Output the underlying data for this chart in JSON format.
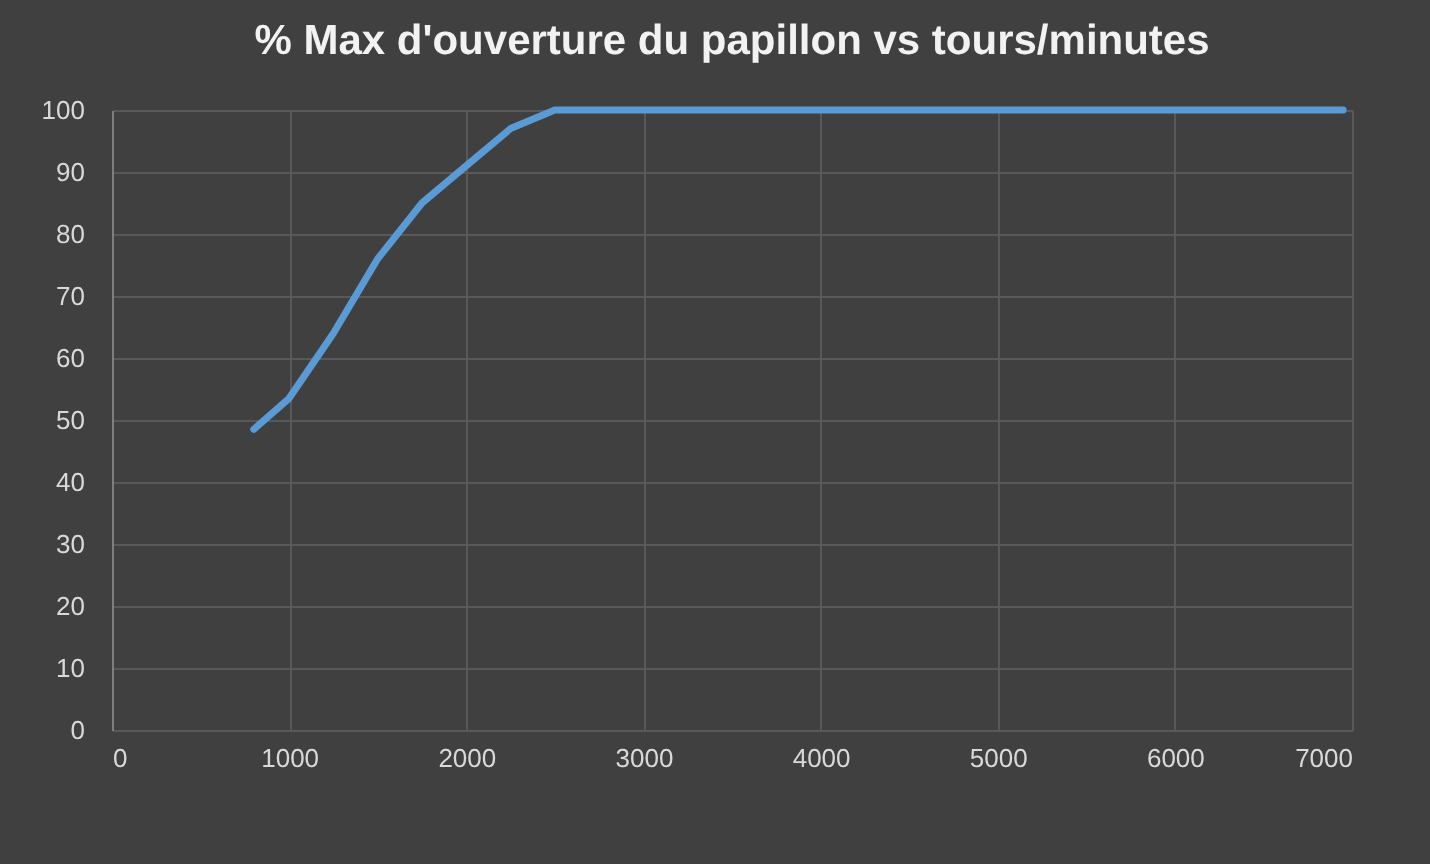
{
  "chart_data": {
    "type": "line",
    "title": "% Max d'ouverture du papillon vs tours/minutes",
    "x": [
      800,
      1000,
      1250,
      1500,
      1750,
      2000,
      2250,
      2500,
      6950
    ],
    "series": [
      {
        "color": "#5b9bd5",
        "values": [
          48.5,
          53.5,
          64,
          76,
          85,
          91,
          97,
          100,
          100
        ]
      }
    ],
    "xlim": [
      0,
      7000
    ],
    "xticks": [
      0,
      1000,
      2000,
      3000,
      4000,
      5000,
      6000,
      7000
    ],
    "ylim": [
      0,
      100
    ],
    "yticks": [
      0,
      10,
      20,
      30,
      40,
      50,
      60,
      70,
      80,
      90,
      100
    ],
    "grid": true,
    "legend": false,
    "marker": "none",
    "line_style": "solid"
  }
}
